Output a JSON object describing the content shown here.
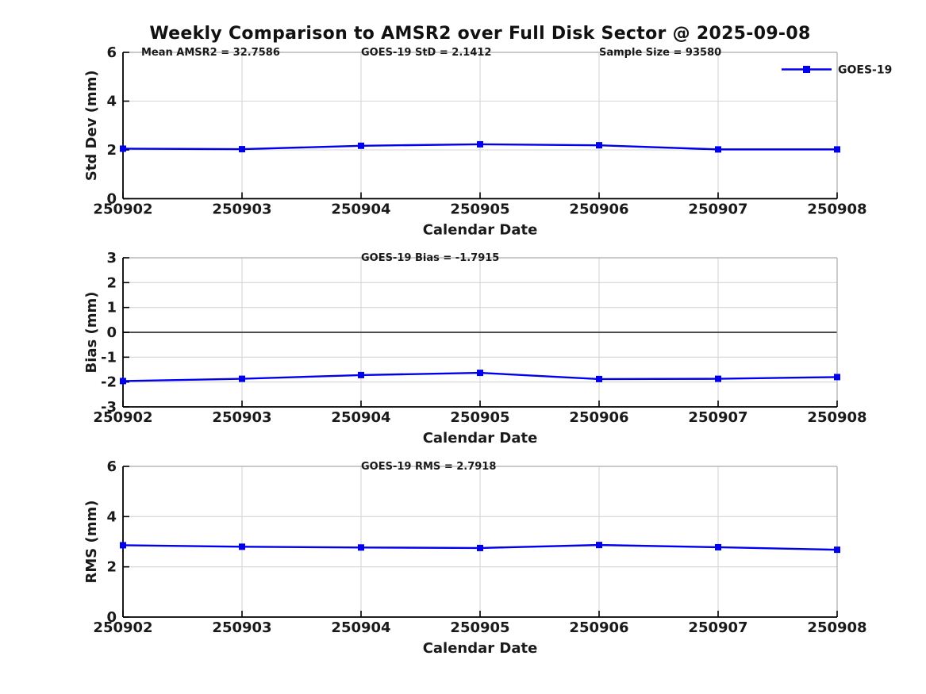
{
  "figure": {
    "title": "Weekly Comparison to AMSR2 over Full Disk Sector @ 2025-09-08",
    "background": "#FFFFFF"
  },
  "legend": {
    "label": "GOES-19",
    "position": "top-right",
    "marker": "filled-square-on-line"
  },
  "colors": {
    "series": "#0000EE",
    "grid": "#D6D6D6",
    "frame": "#ABABAB",
    "axis": "#000000",
    "zero_line": "#4D4D4D",
    "text": "#1A1A1A"
  },
  "chart_data": [
    {
      "type": "line",
      "id": "std-dev",
      "categories": [
        "250902",
        "250903",
        "250904",
        "250905",
        "250906",
        "250907",
        "250908"
      ],
      "series": [
        {
          "name": "GOES-19",
          "values": [
            2.05,
            2.03,
            2.17,
            2.23,
            2.19,
            2.02,
            2.02
          ]
        }
      ],
      "title": "",
      "xlabel": "Calendar Date",
      "ylabel": "Std Dev (mm)",
      "ylim": [
        0,
        6
      ],
      "yticks": [
        0,
        2,
        4,
        6
      ],
      "grid": true,
      "zero_line": false,
      "legend_entry": "GOES-19",
      "annotations": [
        "Mean AMSR2 = 32.7586",
        "GOES-19 StD = 2.1412",
        "Sample Size = 93580"
      ]
    },
    {
      "type": "line",
      "id": "bias",
      "categories": [
        "250902",
        "250903",
        "250904",
        "250905",
        "250906",
        "250907",
        "250908"
      ],
      "series": [
        {
          "name": "GOES-19",
          "values": [
            -1.96,
            -1.87,
            -1.72,
            -1.63,
            -1.88,
            -1.87,
            -1.8
          ]
        }
      ],
      "title": "",
      "xlabel": "Calendar Date",
      "ylabel": "Bias (mm)",
      "ylim": [
        -3,
        3
      ],
      "yticks": [
        -3,
        -2,
        -1,
        0,
        1,
        2,
        3
      ],
      "grid": true,
      "zero_line": true,
      "legend_entry": null,
      "annotations": [
        "GOES-19 Bias  = -1.7915"
      ]
    },
    {
      "type": "line",
      "id": "rms",
      "categories": [
        "250902",
        "250903",
        "250904",
        "250905",
        "250906",
        "250907",
        "250908"
      ],
      "series": [
        {
          "name": "GOES-19",
          "values": [
            2.86,
            2.8,
            2.77,
            2.75,
            2.87,
            2.78,
            2.68
          ]
        }
      ],
      "title": "",
      "xlabel": "Calendar Date",
      "ylabel": "RMS (mm)",
      "ylim": [
        0,
        6
      ],
      "yticks": [
        0,
        2,
        4,
        6
      ],
      "grid": true,
      "zero_line": false,
      "legend_entry": null,
      "annotations": [
        "GOES-19 RMS = 2.7918"
      ]
    }
  ]
}
